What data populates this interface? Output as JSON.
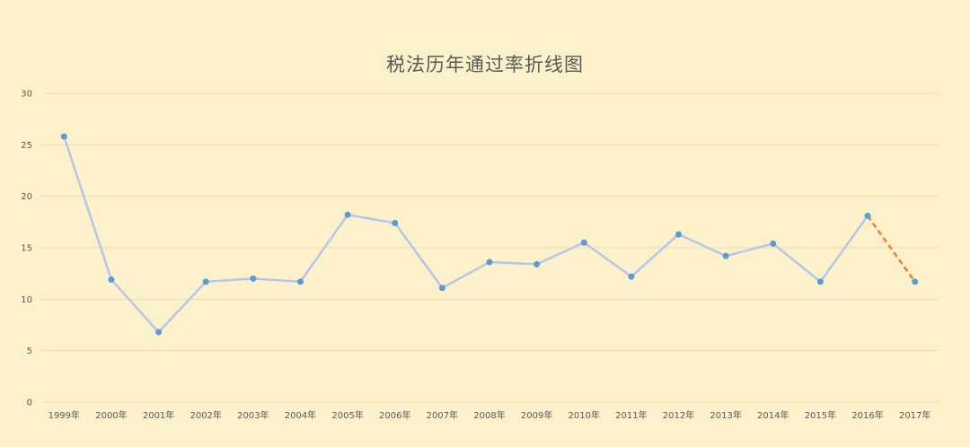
{
  "chart_data": {
    "type": "line",
    "title": "税法历年通过率折线图",
    "xlabel": "",
    "ylabel": "",
    "categories": [
      "1999年",
      "2000年",
      "2001年",
      "2002年",
      "2003年",
      "2004年",
      "2005年",
      "2006年",
      "2007年",
      "2008年",
      "2009年",
      "2010年",
      "2011年",
      "2012年",
      "2013年",
      "2014年",
      "2015年",
      "2016年",
      "2017年"
    ],
    "series": [
      {
        "values": [
          25.8,
          11.9,
          6.8,
          11.7,
          12.0,
          11.7,
          18.2,
          17.4,
          11.1,
          13.6,
          13.4,
          15.5,
          12.2,
          16.3,
          14.2,
          15.4,
          11.7,
          18.1,
          11.7
        ],
        "color": "#b4c7e7",
        "marker_color": "#5b9bd5",
        "last_segment_color": "#ed7d31",
        "last_segment_style": "dashed"
      }
    ],
    "ylim": [
      0,
      30
    ],
    "yticks": [
      0,
      5,
      10,
      15,
      20,
      25,
      30
    ],
    "grid": true,
    "legend": "none",
    "colors": {
      "background": "#fdf1cc",
      "grid": "#ecdcaf",
      "text": "#595959"
    }
  }
}
